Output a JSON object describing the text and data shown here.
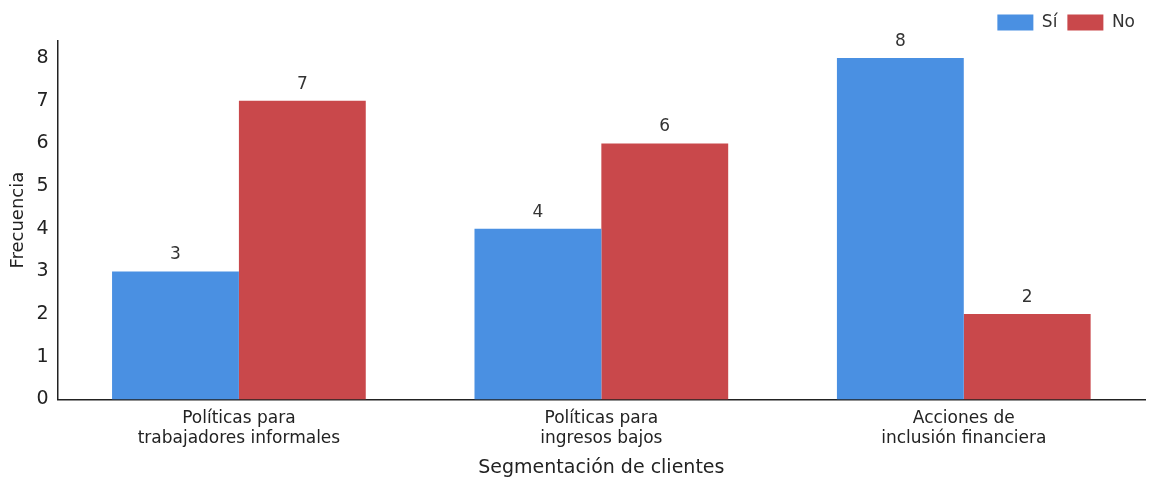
{
  "chart_data": {
    "type": "bar",
    "xlabel": "Segmentación de clientes",
    "ylabel": "Frecuencia",
    "categories": [
      "Políticas para\ntrabajadores informales",
      "Políticas para\ningresos bajos",
      "Acciones de\ninclusión financiera"
    ],
    "series": [
      {
        "name": "Sí",
        "color": "#4a90e2",
        "values": [
          3,
          4,
          8
        ]
      },
      {
        "name": "No",
        "color": "#c9484b",
        "values": [
          7,
          6,
          2
        ]
      }
    ],
    "ylim": [
      0,
      8.4
    ],
    "yticks": [
      0,
      1,
      2,
      3,
      4,
      5,
      6,
      7,
      8
    ],
    "grid": false,
    "legend": "top right",
    "data_labels": true
  }
}
